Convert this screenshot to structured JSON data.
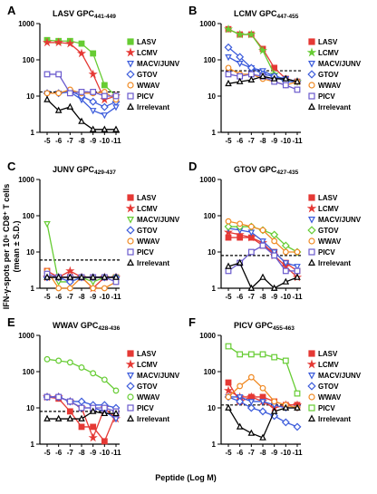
{
  "axis_labels": {
    "y": [
      "IFN-γ-spots per 10⁶ CD8⁺ T cells",
      "(mean ± S.D.)"
    ],
    "x": "Peptide (Log M)"
  },
  "chart_data": [
    {
      "type": "line",
      "panel": "A",
      "title": "LASV GPC",
      "title_sub": "441-449",
      "log_scale": true,
      "ylim": [
        1,
        1000
      ],
      "yticks": [
        1,
        10,
        100,
        1000
      ],
      "threshold": 13,
      "categories": [
        "-5",
        "-6",
        "-7",
        "-8",
        "-9",
        "-10",
        "-11"
      ],
      "series": [
        {
          "name": "LASV",
          "color": "#66cc33",
          "marker": "square",
          "values": [
            350,
            330,
            330,
            280,
            150,
            20,
            10
          ]
        },
        {
          "name": "LCMV",
          "color": "#e53935",
          "marker": "star",
          "values": [
            300,
            300,
            280,
            150,
            40,
            8,
            10
          ]
        },
        {
          "name": "MACV/JUNV",
          "color": "#3b5bdb",
          "marker": "tri-down",
          "values": [
            12,
            12,
            13,
            8,
            4,
            3,
            5
          ]
        },
        {
          "name": "GTOV",
          "color": "#3b5bdb",
          "marker": "diamond",
          "values": [
            12,
            12,
            14,
            10,
            7,
            5,
            7
          ]
        },
        {
          "name": "WWAV",
          "color": "#f08a24",
          "marker": "circle",
          "values": [
            12,
            12,
            15,
            12,
            12,
            13,
            8
          ]
        },
        {
          "name": "PICV",
          "color": "#6a5acd",
          "marker": "open-square",
          "values": [
            40,
            40,
            12,
            13,
            13,
            10,
            10
          ]
        },
        {
          "name": "Irrelevant",
          "color": "#000000",
          "marker": "tri-up",
          "values": [
            8,
            4,
            5,
            2,
            1.2,
            1.2,
            1.2
          ]
        }
      ]
    },
    {
      "type": "line",
      "panel": "B",
      "title": "LCMV GPC",
      "title_sub": "447-455",
      "log_scale": true,
      "ylim": [
        1,
        1000
      ],
      "yticks": [
        1,
        10,
        100,
        1000
      ],
      "threshold": 50,
      "categories": [
        "-5",
        "-6",
        "-7",
        "-8",
        "-9",
        "-10",
        "-11"
      ],
      "series": [
        {
          "name": "LASV",
          "color": "#e53935",
          "marker": "square",
          "values": [
            700,
            500,
            500,
            200,
            60,
            30,
            25
          ]
        },
        {
          "name": "LCMV",
          "color": "#66cc33",
          "marker": "star",
          "values": [
            700,
            500,
            500,
            180,
            40,
            25,
            25
          ]
        },
        {
          "name": "MACV/JUNV",
          "color": "#3b5bdb",
          "marker": "tri-down",
          "values": [
            120,
            80,
            60,
            50,
            35,
            30,
            25
          ]
        },
        {
          "name": "GTOV",
          "color": "#3b5bdb",
          "marker": "diamond",
          "values": [
            220,
            120,
            60,
            40,
            35,
            25,
            25
          ]
        },
        {
          "name": "WWAV",
          "color": "#f08a24",
          "marker": "circle",
          "values": [
            60,
            40,
            40,
            30,
            25,
            20,
            25
          ]
        },
        {
          "name": "PICV",
          "color": "#6a5acd",
          "marker": "open-square",
          "values": [
            40,
            35,
            40,
            35,
            25,
            20,
            15
          ]
        },
        {
          "name": "Irrelevant",
          "color": "#000000",
          "marker": "tri-up",
          "values": [
            22,
            25,
            28,
            35,
            30,
            30,
            25
          ]
        }
      ]
    },
    {
      "type": "line",
      "panel": "C",
      "title": "JUNV GPC",
      "title_sub": "429-437",
      "log_scale": true,
      "ylim": [
        1,
        1000
      ],
      "yticks": [
        1,
        10,
        100,
        1000
      ],
      "threshold": 6,
      "categories": [
        "-5",
        "-6",
        "-7",
        "-8",
        "-9",
        "-10",
        "-11"
      ],
      "series": [
        {
          "name": "LASV",
          "color": "#e53935",
          "marker": "square",
          "values": [
            3,
            2,
            2,
            2,
            2,
            2,
            2
          ]
        },
        {
          "name": "LCMV",
          "color": "#e53935",
          "marker": "star",
          "values": [
            2,
            2,
            3,
            2,
            1,
            2,
            2
          ]
        },
        {
          "name": "MACV/JUNV",
          "color": "#66cc33",
          "marker": "tri-down",
          "values": [
            60,
            1.5,
            1.5,
            2,
            1.5,
            2,
            2
          ]
        },
        {
          "name": "GTOV",
          "color": "#3b5bdb",
          "marker": "diamond",
          "values": [
            2,
            2,
            1.5,
            2,
            2,
            2,
            2
          ]
        },
        {
          "name": "WWAV",
          "color": "#f08a24",
          "marker": "circle",
          "values": [
            3,
            1,
            1,
            2,
            1,
            1,
            1.5
          ]
        },
        {
          "name": "PICV",
          "color": "#6a5acd",
          "marker": "open-square",
          "values": [
            2.5,
            2,
            2,
            2,
            2,
            2,
            1.5
          ]
        },
        {
          "name": "Irrelevant",
          "color": "#000000",
          "marker": "tri-up",
          "values": [
            2,
            2,
            2,
            2,
            2,
            2,
            2
          ]
        }
      ]
    },
    {
      "type": "line",
      "panel": "D",
      "title": "GTOV GPC",
      "title_sub": "427-435",
      "log_scale": true,
      "ylim": [
        1,
        1000
      ],
      "yticks": [
        1,
        10,
        100,
        1000
      ],
      "threshold": 8,
      "categories": [
        "-5",
        "-6",
        "-7",
        "-8",
        "-9",
        "-10",
        "-11"
      ],
      "series": [
        {
          "name": "LASV",
          "color": "#e53935",
          "marker": "square",
          "values": [
            25,
            25,
            25,
            15,
            10,
            5,
            3
          ]
        },
        {
          "name": "LCMV",
          "color": "#e53935",
          "marker": "star",
          "values": [
            35,
            30,
            25,
            18,
            8,
            4,
            2
          ]
        },
        {
          "name": "MACV/JUNV",
          "color": "#3b5bdb",
          "marker": "tri-down",
          "values": [
            45,
            40,
            35,
            20,
            10,
            5,
            4
          ]
        },
        {
          "name": "GTOV",
          "color": "#66cc33",
          "marker": "diamond",
          "values": [
            50,
            50,
            50,
            40,
            30,
            15,
            10
          ]
        },
        {
          "name": "WWAV",
          "color": "#f08a24",
          "marker": "circle",
          "values": [
            70,
            60,
            50,
            40,
            20,
            10,
            10
          ]
        },
        {
          "name": "PICV",
          "color": "#6a5acd",
          "marker": "open-square",
          "values": [
            3,
            5,
            10,
            15,
            8,
            3,
            3
          ]
        },
        {
          "name": "Irrelevant",
          "color": "#000000",
          "marker": "tri-up",
          "values": [
            4,
            5,
            1,
            2,
            1,
            1.5,
            2
          ]
        }
      ]
    },
    {
      "type": "line",
      "panel": "E",
      "title": "WWAV GPC",
      "title_sub": "428-436",
      "log_scale": true,
      "ylim": [
        1,
        1000
      ],
      "yticks": [
        1,
        10,
        100,
        1000
      ],
      "threshold": 8,
      "categories": [
        "-5",
        "-6",
        "-7",
        "-8",
        "-9",
        "-10",
        "-11"
      ],
      "series": [
        {
          "name": "LASV",
          "color": "#e53935",
          "marker": "square",
          "values": [
            20,
            18,
            8,
            3,
            3,
            1.2,
            7
          ]
        },
        {
          "name": "LCMV",
          "color": "#e53935",
          "marker": "star",
          "values": [
            20,
            20,
            15,
            10,
            1.5,
            10,
            5
          ]
        },
        {
          "name": "MACV/JUNV",
          "color": "#3b5bdb",
          "marker": "tri-down",
          "values": [
            20,
            20,
            15,
            10,
            10,
            8,
            5
          ]
        },
        {
          "name": "GTOV",
          "color": "#3b5bdb",
          "marker": "diamond",
          "values": [
            20,
            20,
            15,
            15,
            12,
            12,
            10
          ]
        },
        {
          "name": "WWAV",
          "color": "#66cc33",
          "marker": "circle",
          "values": [
            220,
            200,
            180,
            130,
            90,
            60,
            30
          ]
        },
        {
          "name": "PICV",
          "color": "#6a5acd",
          "marker": "open-square",
          "values": [
            20,
            20,
            15,
            10,
            10,
            10,
            8
          ]
        },
        {
          "name": "Irrelevant",
          "color": "#000000",
          "marker": "tri-up",
          "values": [
            5,
            5,
            5,
            5,
            8,
            7,
            7
          ]
        }
      ]
    },
    {
      "type": "line",
      "panel": "F",
      "title": "PICV GPC",
      "title_sub": "455-463",
      "log_scale": true,
      "ylim": [
        1,
        1000
      ],
      "yticks": [
        1,
        10,
        100,
        1000
      ],
      "threshold": 12,
      "categories": [
        "-5",
        "-6",
        "-7",
        "-8",
        "-9",
        "-10",
        "-11"
      ],
      "series": [
        {
          "name": "LASV",
          "color": "#e53935",
          "marker": "square",
          "values": [
            50,
            15,
            20,
            20,
            15,
            12,
            12
          ]
        },
        {
          "name": "LCMV",
          "color": "#e53935",
          "marker": "star",
          "values": [
            30,
            20,
            20,
            15,
            10,
            12,
            12
          ]
        },
        {
          "name": "MACV/JUNV",
          "color": "#3b5bdb",
          "marker": "tri-down",
          "values": [
            20,
            20,
            15,
            15,
            12,
            10,
            10
          ]
        },
        {
          "name": "GTOV",
          "color": "#3b5bdb",
          "marker": "diamond",
          "values": [
            20,
            15,
            10,
            8,
            6,
            4,
            3
          ]
        },
        {
          "name": "WWAV",
          "color": "#f08a24",
          "marker": "circle",
          "values": [
            20,
            40,
            70,
            35,
            15,
            12,
            10
          ]
        },
        {
          "name": "PICV",
          "color": "#66cc33",
          "marker": "open-square",
          "values": [
            500,
            300,
            300,
            300,
            250,
            200,
            25
          ]
        },
        {
          "name": "Irrelevant",
          "color": "#000000",
          "marker": "tri-up",
          "values": [
            10,
            3,
            2,
            1.5,
            8,
            10,
            10
          ]
        }
      ]
    }
  ]
}
